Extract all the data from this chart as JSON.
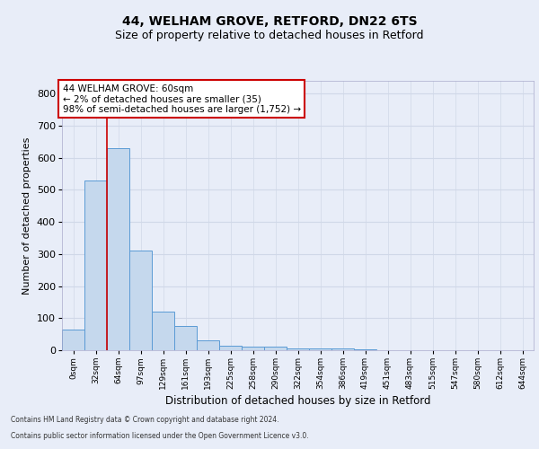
{
  "title1": "44, WELHAM GROVE, RETFORD, DN22 6TS",
  "title2": "Size of property relative to detached houses in Retford",
  "xlabel": "Distribution of detached houses by size in Retford",
  "ylabel": "Number of detached properties",
  "bin_labels": [
    "0sqm",
    "32sqm",
    "64sqm",
    "97sqm",
    "129sqm",
    "161sqm",
    "193sqm",
    "225sqm",
    "258sqm",
    "290sqm",
    "322sqm",
    "354sqm",
    "386sqm",
    "419sqm",
    "451sqm",
    "483sqm",
    "515sqm",
    "547sqm",
    "580sqm",
    "612sqm",
    "644sqm"
  ],
  "bar_values": [
    65,
    530,
    630,
    310,
    120,
    75,
    30,
    15,
    10,
    10,
    5,
    5,
    5,
    3,
    0,
    0,
    0,
    0,
    0,
    0,
    0
  ],
  "bar_color": "#c5d8ed",
  "bar_edge_color": "#5b9bd5",
  "property_line_x": 1.5,
  "annotation_text": "44 WELHAM GROVE: 60sqm\n← 2% of detached houses are smaller (35)\n98% of semi-detached houses are larger (1,752) →",
  "red_line_color": "#cc0000",
  "annotation_box_edge": "#cc0000",
  "ylim": [
    0,
    840
  ],
  "yticks": [
    0,
    100,
    200,
    300,
    400,
    500,
    600,
    700,
    800
  ],
  "grid_color": "#d0d8e8",
  "background_color": "#e8edf8",
  "axes_background": "#e8edf8",
  "footer1": "Contains HM Land Registry data © Crown copyright and database right 2024.",
  "footer2": "Contains public sector information licensed under the Open Government Licence v3.0.",
  "title_fontsize": 10,
  "subtitle_fontsize": 9
}
